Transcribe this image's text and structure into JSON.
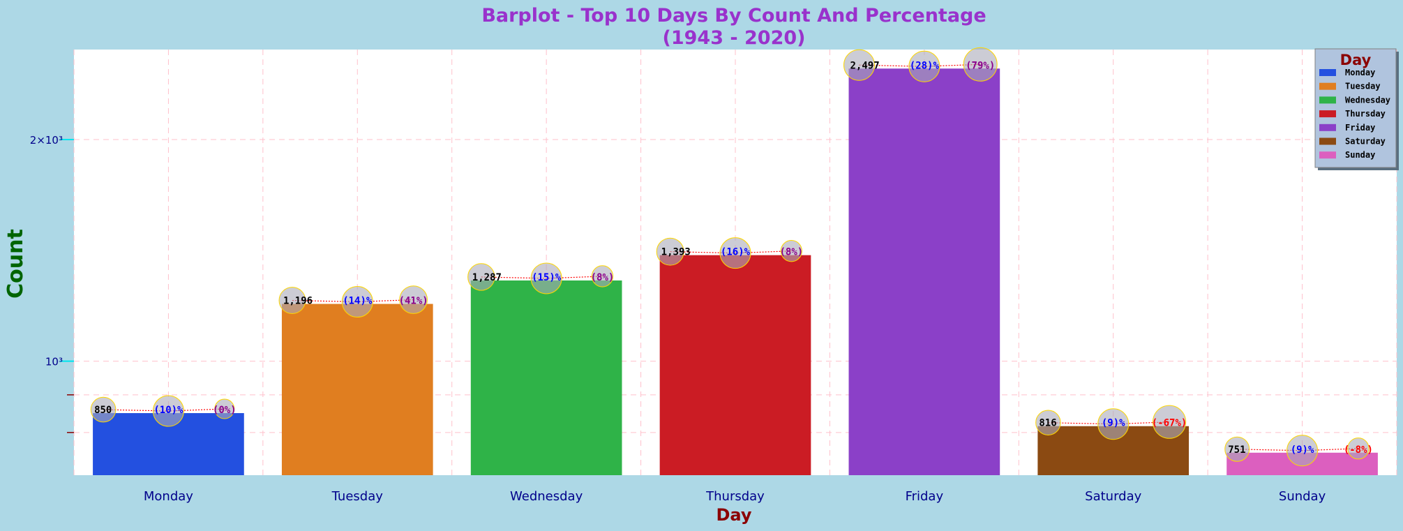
{
  "chart_data": {
    "type": "bar",
    "title": "Barplot - Top 10 Days By Count And Percentage",
    "subtitle": "(1943 - 2020)",
    "xlabel": "Day",
    "ylabel": "Count",
    "yscale": "log",
    "ylim": [
      700,
      2650
    ],
    "y_major_ticks": [
      {
        "value": 1000,
        "label": "10³"
      },
      {
        "value": 2000,
        "label": "2×10³"
      }
    ],
    "y_minor_ticks": [
      800,
      900
    ],
    "grid": true,
    "categories": [
      "Monday",
      "Tuesday",
      "Wednesday",
      "Thursday",
      "Friday",
      "Saturday",
      "Sunday"
    ],
    "values": [
      850,
      1196,
      1287,
      1393,
      2497,
      816,
      751
    ],
    "count_labels": [
      "850",
      "1,196",
      "1,287",
      "1,393",
      "2,497",
      "816",
      "751"
    ],
    "percent_labels": [
      "(10)%",
      "(14)%",
      "(15)%",
      "(16)%",
      "(28)%",
      "(9)%",
      "(9)%"
    ],
    "change_labels": [
      "(0%)",
      "(41%)",
      "(8%)",
      "(8%)",
      "(79%)",
      "(-67%)",
      "(-8%)"
    ],
    "colors": [
      "#2350e0",
      "#e07e20",
      "#2fb348",
      "#cb1c24",
      "#8b40c8",
      "#8b4a12",
      "#dc5fbf"
    ],
    "legend": {
      "title": "Day",
      "placement": "top-right",
      "entries": [
        "Monday",
        "Tuesday",
        "Wednesday",
        "Thursday",
        "Friday",
        "Saturday",
        "Sunday"
      ]
    },
    "style_colors": {
      "background": "#add8e6",
      "plot_background": "#ffffff",
      "grid": "#ffc0cb",
      "title": "#9932cc",
      "positive_change": "#8b008b",
      "negative_change": "#ff0000",
      "legend_background": "#b0c4de"
    }
  }
}
